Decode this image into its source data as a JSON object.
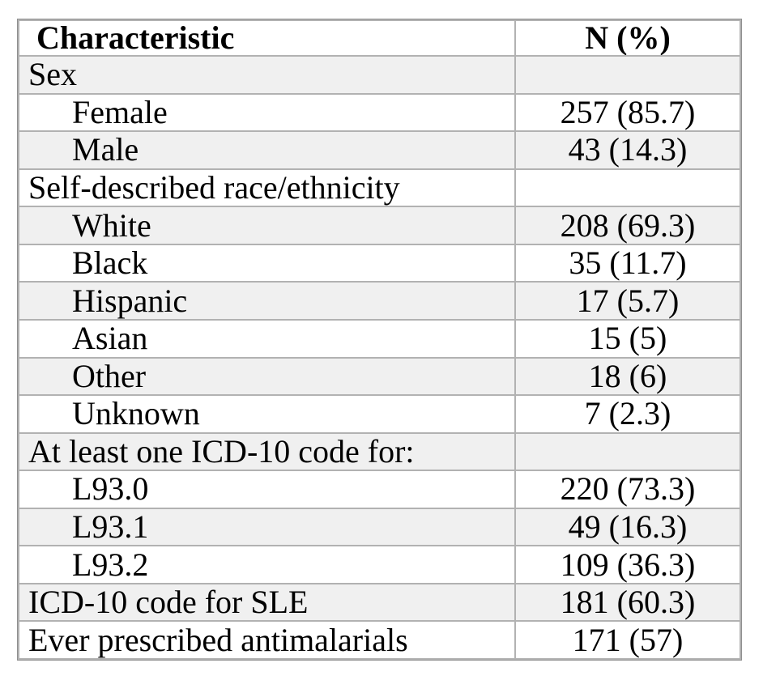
{
  "table": {
    "columns": [
      "Characteristic",
      "N (%)"
    ],
    "rows": [
      {
        "label": "Sex",
        "value": "",
        "indent": false,
        "shaded": true
      },
      {
        "label": "Female",
        "value": "257 (85.7)",
        "indent": true,
        "shaded": false
      },
      {
        "label": "Male",
        "value": "43 (14.3)",
        "indent": true,
        "shaded": true
      },
      {
        "label": "Self-described race/ethnicity",
        "value": "",
        "indent": false,
        "shaded": false
      },
      {
        "label": "White",
        "value": "208 (69.3)",
        "indent": true,
        "shaded": true
      },
      {
        "label": "Black",
        "value": "35 (11.7)",
        "indent": true,
        "shaded": false
      },
      {
        "label": "Hispanic",
        "value": "17 (5.7)",
        "indent": true,
        "shaded": true
      },
      {
        "label": "Asian",
        "value": "15 (5)",
        "indent": true,
        "shaded": false
      },
      {
        "label": "Other",
        "value": "18 (6)",
        "indent": true,
        "shaded": true
      },
      {
        "label": "Unknown",
        "value": "7 (2.3)",
        "indent": true,
        "shaded": false
      },
      {
        "label": "At least one ICD-10 code for:",
        "value": "",
        "indent": false,
        "shaded": true
      },
      {
        "label": "L93.0",
        "value": "220 (73.3)",
        "indent": true,
        "shaded": false
      },
      {
        "label": "L93.1",
        "value": "49 (16.3)",
        "indent": true,
        "shaded": true
      },
      {
        "label": "L93.2",
        "value": "109 (36.3)",
        "indent": true,
        "shaded": false
      },
      {
        "label": "ICD-10 code for SLE",
        "value": "181 (60.3)",
        "indent": false,
        "shaded": true
      },
      {
        "label": "Ever prescribed antimalarials",
        "value": "171 (57)",
        "indent": false,
        "shaded": false
      }
    ],
    "colors": {
      "row_shade": "#f0f0f0",
      "inner_border": "#b2b2b2",
      "outer_border": "#8f8f8f",
      "text": "#000000",
      "background": "#ffffff"
    }
  }
}
